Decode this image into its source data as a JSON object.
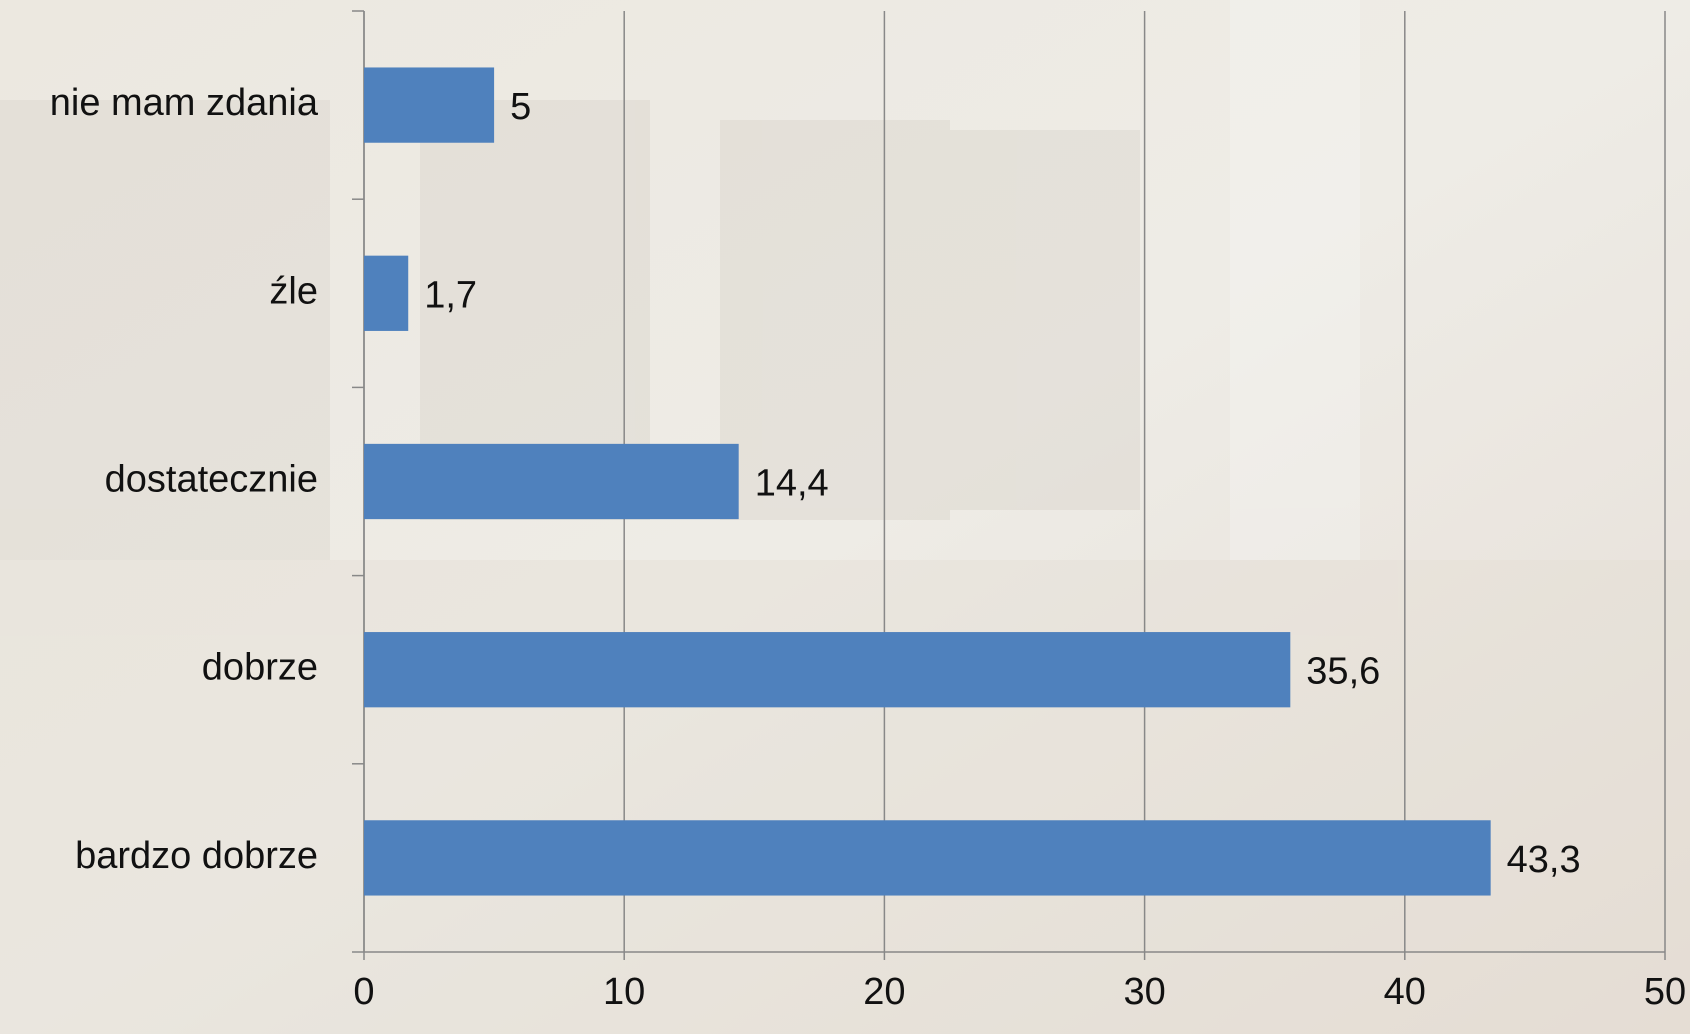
{
  "chart_data": {
    "type": "hbar",
    "categories": [
      "nie mam zdania",
      "źle",
      "dostatecznie",
      "dobrze",
      "bardzo dobrze"
    ],
    "values": [
      5,
      1.7,
      14.4,
      35.6,
      43.3
    ],
    "value_labels": [
      "5",
      "1,7",
      "14,4",
      "35,6",
      "43,3"
    ],
    "color": "#4f81bd",
    "xlim": [
      0,
      50
    ],
    "xticks": [
      0,
      10,
      20,
      30,
      40,
      50
    ],
    "grid": true
  }
}
